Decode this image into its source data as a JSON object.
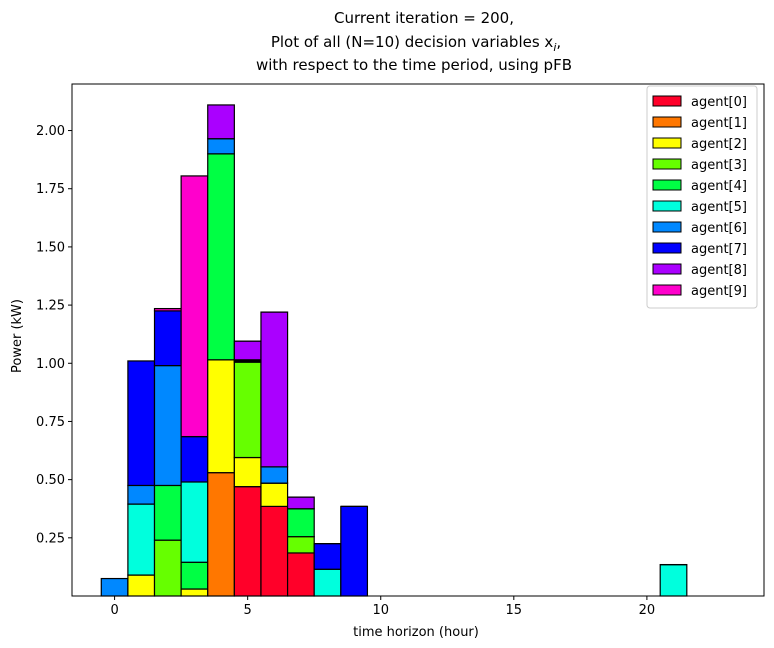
{
  "chart_data": {
    "type": "bar",
    "stacked": true,
    "title_lines": [
      "Current iteration = 200,",
      "Plot of all (N=10) decision variables x",
      "with respect to the time period, using pFB"
    ],
    "title_subscript": "i",
    "title_suffix": ",",
    "xlabel": "time horizon (hour)",
    "ylabel": "Power (kW)",
    "xlim": [
      -1.6,
      24.4
    ],
    "ylim": [
      0,
      2.2
    ],
    "xticks": [
      0,
      5,
      10,
      15,
      20
    ],
    "yticks": [
      0.25,
      0.5,
      0.75,
      1.0,
      1.25,
      1.5,
      1.75,
      2.0
    ],
    "ytick_labels": [
      "0.25",
      "0.50",
      "0.75",
      "1.00",
      "1.25",
      "1.50",
      "1.75",
      "2.00"
    ],
    "legend_position": "upper right",
    "grid": false,
    "x": [
      0,
      1,
      2,
      3,
      4,
      5,
      6,
      7,
      8,
      9,
      10,
      11,
      12,
      13,
      14,
      15,
      16,
      17,
      18,
      19,
      20,
      21,
      22,
      23
    ],
    "series": [
      {
        "name": "agent[0]",
        "color": "#ff0029",
        "values": [
          0,
          0,
          0,
          0,
          0,
          0.47,
          0.385,
          0.185,
          0,
          0,
          0,
          0,
          0,
          0,
          0,
          0,
          0,
          0,
          0,
          0,
          0,
          0,
          0,
          0
        ]
      },
      {
        "name": "agent[1]",
        "color": "#ff7700",
        "values": [
          0,
          0,
          0,
          0,
          0.53,
          0,
          0,
          0,
          0,
          0,
          0,
          0,
          0,
          0,
          0,
          0,
          0,
          0,
          0,
          0,
          0,
          0,
          0,
          0
        ]
      },
      {
        "name": "agent[2]",
        "color": "#ffff00",
        "values": [
          0,
          0.09,
          0,
          0.03,
          0.485,
          0.125,
          0.1,
          0,
          0,
          0,
          0,
          0,
          0,
          0,
          0,
          0,
          0,
          0,
          0,
          0,
          0,
          0,
          0,
          0
        ]
      },
      {
        "name": "agent[3]",
        "color": "#66ff00",
        "values": [
          0,
          0,
          0.24,
          0,
          0,
          0.41,
          0,
          0.07,
          0,
          0,
          0,
          0,
          0,
          0,
          0,
          0,
          0,
          0,
          0,
          0,
          0,
          0,
          0,
          0
        ]
      },
      {
        "name": "agent[4]",
        "color": "#00ff44",
        "values": [
          0,
          0,
          0.235,
          0.115,
          0.885,
          0,
          0,
          0.12,
          0,
          0,
          0,
          0,
          0,
          0,
          0,
          0,
          0,
          0,
          0,
          0,
          0,
          0,
          0,
          0
        ]
      },
      {
        "name": "agent[5]",
        "color": "#00ffdd",
        "values": [
          0,
          0.305,
          0,
          0.345,
          0,
          0.005,
          0,
          0,
          0.115,
          0,
          0,
          0,
          0,
          0,
          0,
          0,
          0,
          0,
          0,
          0,
          0,
          0.135,
          0,
          0
        ]
      },
      {
        "name": "agent[6]",
        "color": "#0088ff",
        "values": [
          0.075,
          0.08,
          0.515,
          0,
          0.065,
          0.005,
          0.07,
          0,
          0,
          0,
          0,
          0,
          0,
          0,
          0,
          0,
          0,
          0,
          0,
          0,
          0,
          0,
          0,
          0
        ]
      },
      {
        "name": "agent[7]",
        "color": "#0000ff",
        "values": [
          0,
          0.535,
          0.235,
          0.195,
          0,
          0,
          0,
          0,
          0.11,
          0.385,
          0,
          0,
          0,
          0,
          0,
          0,
          0,
          0,
          0,
          0,
          0,
          0,
          0,
          0
        ]
      },
      {
        "name": "agent[8]",
        "color": "#aa00ff",
        "values": [
          0,
          0,
          0,
          0,
          0.145,
          0.08,
          0.665,
          0.05,
          0,
          0,
          0,
          0,
          0,
          0,
          0,
          0,
          0,
          0,
          0,
          0,
          0,
          0,
          0,
          0
        ]
      },
      {
        "name": "agent[9]",
        "color": "#ff00cc",
        "values": [
          0,
          0,
          0.01,
          1.12,
          0,
          0,
          0,
          0,
          0,
          0,
          0,
          0,
          0,
          0,
          0,
          0,
          0,
          0,
          0,
          0,
          0,
          0,
          0,
          0
        ]
      }
    ]
  }
}
